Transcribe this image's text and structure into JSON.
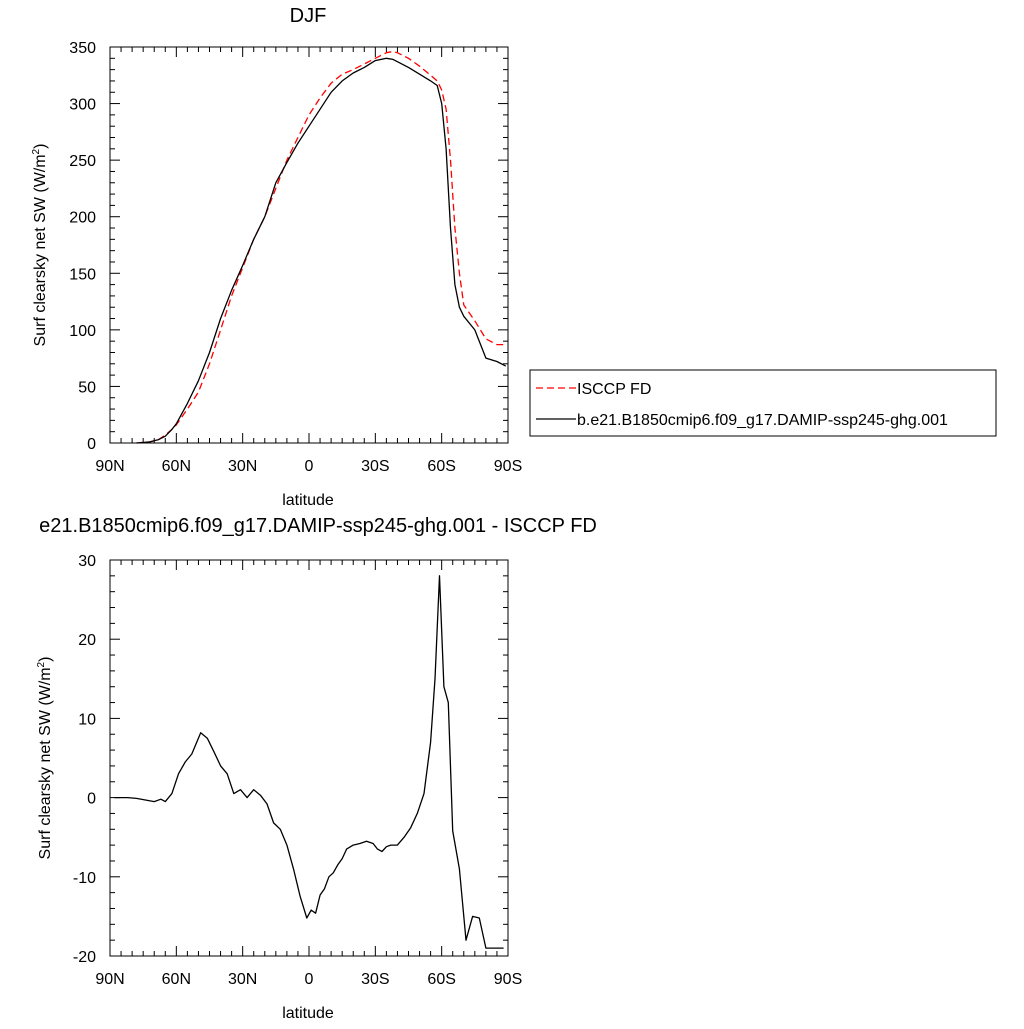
{
  "chart_data": [
    {
      "type": "line",
      "title": "DJF",
      "xlabel": "latitude",
      "ylabel": "Surf clearsky net SW (W/m",
      "ylabel_sup": "2",
      "ylabel_end": ")",
      "xlim": [
        90,
        -90
      ],
      "ylim": [
        0,
        350
      ],
      "xticks": [
        90,
        60,
        30,
        0,
        -30,
        -60,
        -90
      ],
      "xtick_labels": [
        "90N",
        "60N",
        "30N",
        "0",
        "30S",
        "60S",
        "90S"
      ],
      "yticks": [
        0,
        50,
        100,
        150,
        200,
        250,
        300,
        350
      ],
      "ytick_labels": [
        "0",
        "50",
        "100",
        "150",
        "200",
        "250",
        "300",
        "350"
      ],
      "grid": false,
      "legend_position": "right",
      "series": [
        {
          "name": "ISCCP FD",
          "color": "#ff0000",
          "style": "dashed",
          "x": [
            78,
            72,
            68,
            65,
            62,
            60,
            55,
            50,
            45,
            40,
            35,
            30,
            25,
            20,
            15,
            10,
            5,
            0,
            -5,
            -10,
            -15,
            -20,
            -25,
            -30,
            -35,
            -38,
            -40,
            -45,
            -50,
            -55,
            -58,
            -60,
            -62,
            -64,
            -66,
            -68,
            -70,
            -75,
            -80,
            -85,
            -89
          ],
          "y": [
            0,
            1,
            3,
            7,
            12,
            16,
            30,
            45,
            70,
            100,
            130,
            155,
            180,
            200,
            225,
            250,
            270,
            290,
            305,
            318,
            326,
            330,
            335,
            340,
            345,
            346,
            345,
            340,
            333,
            325,
            320,
            312,
            295,
            250,
            190,
            150,
            122,
            108,
            92,
            87,
            87
          ]
        },
        {
          "name": "b.e21.B1850cmip6.f09_g17.DAMIP-ssp245-ghg.001",
          "color": "#000000",
          "style": "solid",
          "x": [
            78,
            72,
            68,
            65,
            62,
            60,
            55,
            50,
            45,
            40,
            35,
            30,
            25,
            20,
            15,
            10,
            5,
            0,
            -5,
            -10,
            -15,
            -20,
            -25,
            -30,
            -35,
            -38,
            -40,
            -45,
            -50,
            -55,
            -58,
            -60,
            -62,
            -64,
            -66,
            -68,
            -70,
            -75,
            -80,
            -85,
            -89
          ],
          "y": [
            0,
            1,
            3,
            6,
            12,
            17,
            35,
            55,
            80,
            110,
            135,
            157,
            180,
            200,
            230,
            248,
            265,
            280,
            295,
            310,
            320,
            327,
            332,
            338,
            340,
            339,
            337,
            332,
            326,
            320,
            316,
            300,
            260,
            190,
            140,
            120,
            112,
            100,
            75,
            72,
            68
          ]
        }
      ]
    },
    {
      "type": "line",
      "title": "e21.B1850cmip6.f09_g17.DAMIP-ssp245-ghg.001 - ISCCP FD",
      "xlabel": "latitude",
      "ylabel": "Surf clearsky net SW (W/m",
      "ylabel_sup": "2",
      "ylabel_end": ")",
      "xlim": [
        90,
        -90
      ],
      "ylim": [
        -20,
        30
      ],
      "xticks": [
        90,
        60,
        30,
        0,
        -30,
        -60,
        -90
      ],
      "xtick_labels": [
        "90N",
        "60N",
        "30N",
        "0",
        "30S",
        "60S",
        "90S"
      ],
      "yticks": [
        -20,
        -10,
        0,
        10,
        20,
        30
      ],
      "ytick_labels": [
        "-20",
        "-10",
        "0",
        "10",
        "20",
        "30"
      ],
      "grid": false,
      "series": [
        {
          "color": "#000000",
          "style": "solid",
          "x": [
            88,
            82,
            78,
            74,
            70,
            67,
            65,
            62,
            59,
            56,
            53,
            49,
            46,
            43,
            40,
            37,
            34,
            31,
            28,
            25,
            22,
            19,
            16,
            13,
            10,
            7,
            4,
            1,
            -1,
            -3,
            -5,
            -7,
            -9,
            -11,
            -13,
            -15,
            -17,
            -20,
            -23,
            -26,
            -29,
            -31,
            -33,
            -35,
            -37,
            -40,
            -43,
            -46,
            -49,
            -52,
            -55,
            -57,
            -59,
            -61,
            -63,
            -65,
            -68,
            -71,
            -74,
            -77,
            -80,
            -83,
            -86,
            -88
          ],
          "y": [
            0,
            0,
            -0.1,
            -0.3,
            -0.5,
            -0.2,
            -0.5,
            0.5,
            3,
            4.5,
            5.5,
            8.2,
            7.5,
            5.8,
            4,
            3,
            0.5,
            1,
            0,
            1,
            0.3,
            -0.8,
            -3.2,
            -4,
            -6,
            -9,
            -12.5,
            -15.2,
            -14.2,
            -14.6,
            -12.3,
            -11.5,
            -10,
            -9.5,
            -8.5,
            -7.7,
            -6.5,
            -6,
            -5.8,
            -5.5,
            -5.8,
            -6.5,
            -6.8,
            -6.2,
            -6,
            -6,
            -5,
            -3.8,
            -2,
            0.5,
            7,
            15,
            28,
            14,
            12,
            -4.2,
            -9,
            -18,
            -15,
            -15.2,
            -19,
            -19,
            -19,
            -19
          ]
        }
      ]
    }
  ]
}
